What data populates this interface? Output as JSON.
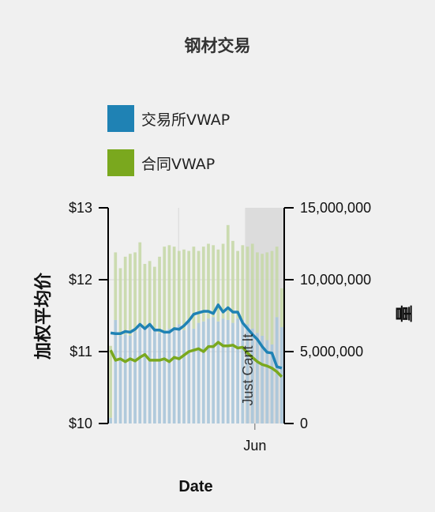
{
  "chart_data": {
    "type": "bar+line",
    "title": "钢材交易",
    "xlabel": "Date",
    "ylabel_left": "加权平均价",
    "ylabel_right": "量",
    "ylim_left": [
      10,
      13
    ],
    "ylim_right": [
      0,
      15000000
    ],
    "yticks_left": [
      "$13",
      "$12",
      "$11",
      "$10"
    ],
    "yticks_right": [
      "15,000,000",
      "10,000,000",
      "5,000,000",
      "0"
    ],
    "x_tick_labels": [
      "Jun"
    ],
    "annotation": "Just Cant It",
    "colors": {
      "exchange": "#1f82b4",
      "contract": "#7aa81e",
      "volume_top": "#c6d8a8",
      "volume_bottom": "#a9c5d9",
      "shade": "#dcdcdc"
    },
    "legend": [
      {
        "label": "交易所VWAP",
        "color": "#1f82b4"
      },
      {
        "label": "合同VWAP",
        "color": "#7aa81e"
      }
    ],
    "series": [
      {
        "name": "交易所VWAP",
        "kind": "line",
        "values": [
          11.26,
          11.25,
          11.25,
          11.28,
          11.27,
          11.31,
          11.38,
          11.32,
          11.38,
          11.3,
          11.3,
          11.27,
          11.27,
          11.32,
          11.31,
          11.36,
          11.43,
          11.52,
          11.54,
          11.56,
          11.56,
          11.53,
          11.65,
          11.55,
          11.61,
          11.55,
          11.55,
          11.4,
          11.32,
          11.24,
          11.17,
          11.07,
          10.99,
          10.98,
          10.79,
          10.77
        ]
      },
      {
        "name": "合同VWAP",
        "kind": "line",
        "values": [
          11.02,
          10.88,
          10.9,
          10.86,
          10.9,
          10.87,
          10.92,
          10.96,
          10.88,
          10.88,
          10.88,
          10.9,
          10.86,
          10.92,
          10.9,
          10.95,
          11.0,
          11.02,
          11.04,
          11.0,
          11.07,
          11.07,
          11.13,
          11.08,
          11.08,
          11.09,
          11.05,
          11.06,
          10.98,
          10.92,
          10.86,
          10.82,
          10.8,
          10.77,
          10.72,
          10.65
        ]
      },
      {
        "name": "交易所量",
        "kind": "bar",
        "values": [
          400000,
          7200000,
          6100000,
          6200000,
          6100000,
          6400000,
          6700000,
          6600000,
          6900000,
          6600000,
          6300000,
          6400000,
          6600000,
          6600000,
          6900000,
          6500000,
          7100000,
          6600000,
          7000000,
          7100000,
          7300000,
          7400000,
          7100000,
          7300000,
          7200000,
          7000000,
          7300000,
          7200000,
          6900000,
          6600000,
          6300000,
          6100000,
          5800000,
          5500000,
          7400000,
          6700000
        ]
      },
      {
        "name": "合同量",
        "kind": "bar",
        "values": [
          5000000,
          4700000,
          4700000,
          5400000,
          5700000,
          5500000,
          5900000,
          4500000,
          4400000,
          4300000,
          5300000,
          5900000,
          5800000,
          5700000,
          5100000,
          5600000,
          4900000,
          5700000,
          5000000,
          5200000,
          5200000,
          5000000,
          5000000,
          5200000,
          6600000,
          5700000,
          4700000,
          5200000,
          5400000,
          5900000,
          5600000,
          5700000,
          6100000,
          6500000,
          4900000,
          2700000
        ]
      }
    ],
    "shaded_region_start_index": 28
  }
}
